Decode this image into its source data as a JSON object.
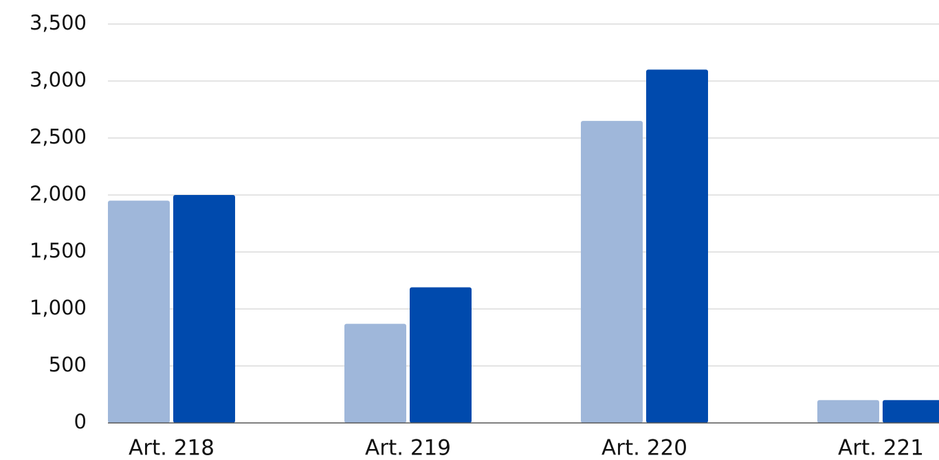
{
  "chart_data": {
    "type": "bar",
    "categories": [
      "Art. 218",
      "Art. 219",
      "Art. 220",
      "Art. 221"
    ],
    "series": [
      {
        "color": "#9fb7da",
        "values": [
          1950,
          870,
          2650,
          200
        ]
      },
      {
        "color": "#004aad",
        "values": [
          2000,
          1190,
          3100,
          200
        ]
      }
    ],
    "ylim": [
      0,
      3500
    ],
    "yticks": [
      0,
      500,
      {
        "value": 1000,
        "label": "1,000"
      },
      {
        "value": 1500,
        "label": "1,500"
      },
      {
        "value": 2000,
        "label": "2,000"
      },
      {
        "value": 2500,
        "label": "2,500"
      },
      {
        "value": 3000,
        "label": "3,000"
      },
      {
        "value": 3500,
        "label": "3,500"
      }
    ],
    "grid": true
  }
}
